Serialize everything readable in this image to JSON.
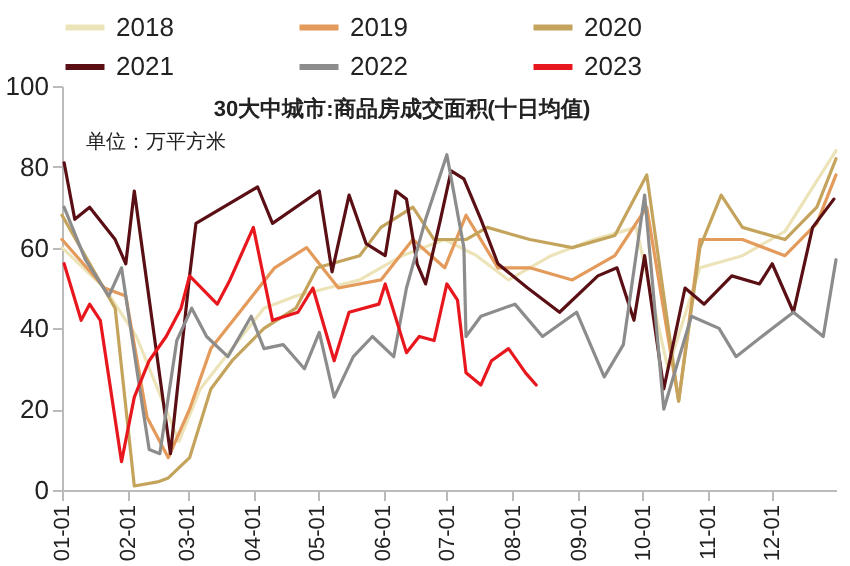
{
  "chart_data": {
    "type": "line",
    "title": "30大中城市:商品房成交面积(十日均值)",
    "annotations": [
      "单位：万平方米"
    ],
    "xlim": [
      "--01-01",
      "--12-31"
    ],
    "xticks": [
      {
        "value": "--01-01",
        "label": "01-01"
      },
      {
        "value": "--02-01",
        "label": "02-01"
      },
      {
        "value": "--03-01",
        "label": "03-01"
      },
      {
        "value": "--04-01",
        "label": "04-01"
      },
      {
        "value": "--05-01",
        "label": "05-01"
      },
      {
        "value": "--06-01",
        "label": "06-01"
      },
      {
        "value": "--07-01",
        "label": "07-01"
      },
      {
        "value": "--08-01",
        "label": "08-01"
      },
      {
        "value": "--09-01",
        "label": "09-01"
      },
      {
        "value": "--10-01",
        "label": "10-01"
      },
      {
        "value": "--11-01",
        "label": "11-01"
      },
      {
        "value": "--12-01",
        "label": "12-01"
      }
    ],
    "ylim": [
      0,
      100
    ],
    "yticks": [
      0,
      20,
      40,
      60,
      80,
      100
    ],
    "grid": false,
    "legend": "top",
    "marker": "none",
    "line_style": "solid",
    "series": [
      {
        "name": "2018",
        "color": "#ece4b8",
        "x": [
          "--01-01",
          "--01-21",
          "--02-05",
          "--02-15",
          "--02-25",
          "--03-07",
          "--03-22",
          "--04-06",
          "--04-21",
          "--05-06",
          "--05-21",
          "--06-10",
          "--06-30",
          "--07-15",
          "--07-30",
          "--08-19",
          "--09-08",
          "--09-28",
          "--10-13",
          "--10-28",
          "--11-17",
          "--12-07",
          "--12-31"
        ],
        "values": [
          60,
          50,
          38,
          25,
          12,
          25,
          35,
          45,
          48,
          50,
          52,
          58,
          62,
          58,
          52,
          58,
          62,
          65,
          30,
          55,
          58,
          64,
          84
        ]
      },
      {
        "name": "2019",
        "color": "#e49a5a",
        "x": [
          "--01-01",
          "--01-21",
          "--01-31",
          "--02-10",
          "--02-20",
          "--03-02",
          "--03-12",
          "--03-27",
          "--04-11",
          "--04-26",
          "--05-11",
          "--05-31",
          "--06-15",
          "--06-30",
          "--07-10",
          "--07-25",
          "--08-09",
          "--08-29",
          "--09-18",
          "--10-03",
          "--10-18",
          "--10-28",
          "--11-17",
          "--12-07",
          "--12-22",
          "--12-31"
        ],
        "values": [
          62,
          50,
          48,
          18,
          8,
          20,
          35,
          45,
          55,
          60,
          50,
          52,
          62,
          55,
          68,
          55,
          55,
          52,
          58,
          70,
          22,
          62,
          62,
          58,
          66,
          78
        ]
      },
      {
        "name": "2020",
        "color": "#c4a45c",
        "x": [
          "--01-01",
          "--01-26",
          "--02-04",
          "--02-15",
          "--02-20",
          "--03-02",
          "--03-12",
          "--03-22",
          "--04-06",
          "--04-21",
          "--05-01",
          "--05-21",
          "--05-31",
          "--06-15",
          "--06-25",
          "--07-10",
          "--07-20",
          "--08-09",
          "--08-29",
          "--09-18",
          "--10-03",
          "--10-18",
          "--10-28",
          "--11-07",
          "--11-17",
          "--12-07",
          "--12-22",
          "--12-31"
        ],
        "values": [
          68,
          45,
          1,
          2,
          3,
          8,
          25,
          32,
          40,
          45,
          55,
          58,
          65,
          70,
          62,
          62,
          65,
          62,
          60,
          63,
          78,
          22,
          60,
          73,
          65,
          62,
          70,
          82
        ]
      },
      {
        "name": "2021",
        "color": "#5a0f14",
        "x": [
          "--01-02",
          "--01-07",
          "--01-14",
          "--01-26",
          "--01-31",
          "--02-04",
          "--02-21",
          "--03-02",
          "--03-05",
          "--04-03",
          "--04-10",
          "--05-02",
          "--05-08",
          "--05-16",
          "--05-24",
          "--06-02",
          "--06-07",
          "--06-12",
          "--06-17",
          "--06-21",
          "--06-28",
          "--07-03",
          "--07-09",
          "--07-17",
          "--07-25",
          "--08-08",
          "--08-23",
          "--09-10",
          "--09-19",
          "--09-27",
          "--10-02",
          "--10-11",
          "--10-21",
          "--10-30",
          "--11-12",
          "--11-25",
          "--12-01",
          "--12-11",
          "--12-20",
          "--12-30"
        ],
        "values": [
          81,
          67,
          70,
          62,
          56,
          74,
          9,
          53,
          66,
          75,
          66,
          74,
          54,
          73,
          61,
          58,
          74,
          72,
          56,
          51,
          67,
          79,
          77,
          67,
          56,
          50,
          44,
          53,
          55,
          42,
          58,
          25,
          50,
          46,
          53,
          51,
          56,
          44,
          65,
          72
        ]
      },
      {
        "name": "2022",
        "color": "#8c8c8c",
        "x": [
          "--01-02",
          "--01-12",
          "--01-23",
          "--01-29",
          "--02-06",
          "--02-11",
          "--02-16",
          "--02-24",
          "--03-03",
          "--03-10",
          "--03-20",
          "--03-31",
          "--04-06",
          "--04-15",
          "--04-25",
          "--05-02",
          "--05-09",
          "--05-18",
          "--05-27",
          "--06-06",
          "--06-12",
          "--06-21",
          "--07-01",
          "--07-09",
          "--07-10",
          "--07-17",
          "--08-02",
          "--08-15",
          "--08-31",
          "--09-13",
          "--09-22",
          "--10-02",
          "--10-11",
          "--10-24",
          "--11-06",
          "--11-14",
          "--12-01",
          "--12-11",
          "--12-25",
          "--12-31"
        ],
        "values": [
          70,
          57,
          48,
          55,
          27,
          10,
          9,
          37,
          45,
          38,
          33,
          43,
          35,
          36,
          30,
          39,
          23,
          33,
          38,
          33,
          50,
          67,
          83,
          60,
          38,
          43,
          46,
          38,
          44,
          28,
          36,
          73,
          20,
          43,
          40,
          33,
          40,
          44,
          38,
          57
        ]
      },
      {
        "name": "2023",
        "color": "#e8171e",
        "x": [
          "--01-02",
          "--01-10",
          "--01-14",
          "--01-19",
          "--01-29",
          "--02-04",
          "--02-11",
          "--02-19",
          "--02-26",
          "--03-02",
          "--03-15",
          "--03-21",
          "--04-01",
          "--04-10",
          "--04-22",
          "--04-29",
          "--05-09",
          "--05-16",
          "--05-30",
          "--06-02",
          "--06-12",
          "--06-18",
          "--06-25",
          "--07-01",
          "--07-06",
          "--07-10",
          "--07-17",
          "--07-22",
          "--07-30",
          "--08-07",
          "--08-12"
        ],
        "values": [
          56,
          42,
          46,
          42,
          7,
          23,
          32,
          38,
          45,
          53,
          46,
          52,
          65,
          42,
          44,
          50,
          32,
          44,
          46,
          51,
          34,
          38,
          37,
          51,
          47,
          29,
          26,
          32,
          35,
          29,
          26
        ]
      }
    ]
  }
}
